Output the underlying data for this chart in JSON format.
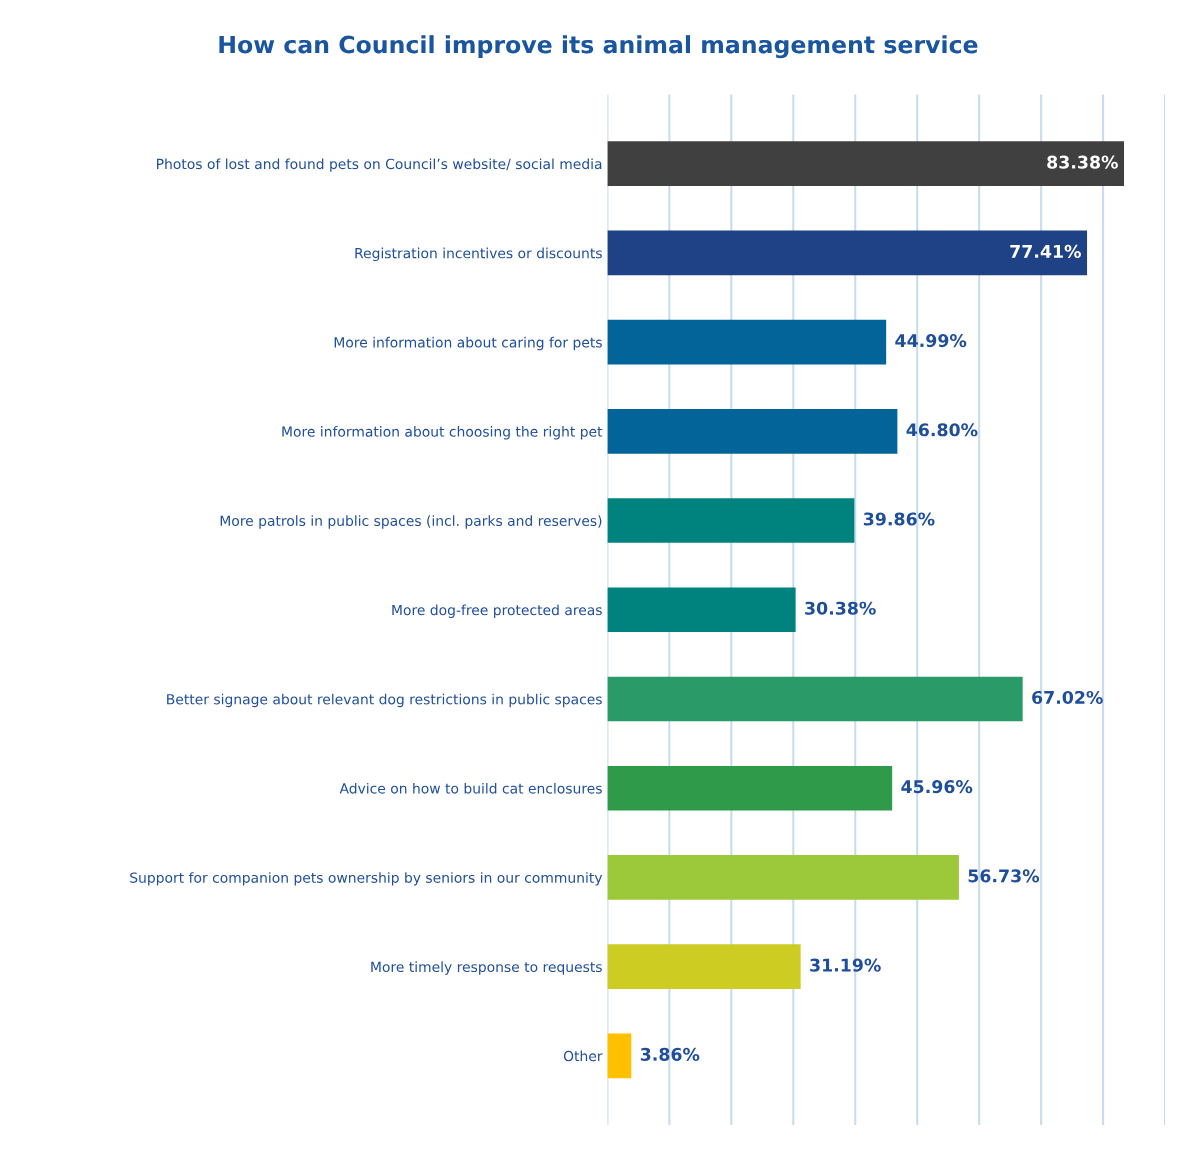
{
  "chart_data": {
    "type": "bar",
    "orientation": "horizontal",
    "title": "How can Council improve its animal management service",
    "categories": [
      "Photos of lost and found pets on Council’s website/ social media",
      "Registration incentives or discounts",
      "More information about caring for pets",
      "More information about choosing the right pet",
      "More patrols in public spaces (incl. parks and reserves)",
      "More dog-free protected areas",
      "Better signage about relevant dog restrictions in public spaces",
      "Advice on how to build cat enclosures",
      "Support for companion pets ownership by seniors in our community",
      "More timely response to requests",
      "Other"
    ],
    "values": [
      83.38,
      77.41,
      44.99,
      46.8,
      39.86,
      30.38,
      67.02,
      45.96,
      56.73,
      31.19,
      3.86
    ],
    "value_labels": [
      "83.38%",
      "77.41%",
      "44.99%",
      "46.80%",
      "39.86%",
      "30.38%",
      "67.02%",
      "45.96%",
      "56.73%",
      "31.19%",
      "3.86%"
    ],
    "colors": [
      "#404040",
      "#1f4286",
      "#03649a",
      "#03649a",
      "#00827f",
      "#00827f",
      "#2a9a68",
      "#2e9a4a",
      "#9bc93a",
      "#cdcc22",
      "#ffc000"
    ],
    "xlim": [
      0,
      90
    ],
    "xticks": [
      {
        "value": 0,
        "label": null
      },
      {
        "value": 10,
        "label": null
      },
      {
        "value": 20,
        "label": null
      },
      {
        "value": 30,
        "label": null
      },
      {
        "value": 40,
        "label": null
      },
      {
        "value": 50,
        "label": null
      },
      {
        "value": 60,
        "label": null
      },
      {
        "value": 70,
        "label": null
      },
      {
        "value": 80,
        "label": null
      },
      {
        "value": 90,
        "label": null
      }
    ],
    "grid": "x"
  }
}
